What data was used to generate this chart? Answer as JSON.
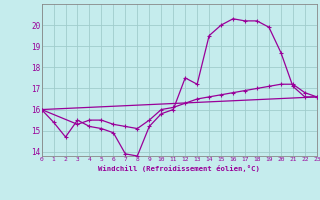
{
  "xlabel": "Windchill (Refroidissement éolien,°C)",
  "xlim": [
    0,
    23
  ],
  "ylim": [
    13.8,
    21.0
  ],
  "yticks": [
    14,
    15,
    16,
    17,
    18,
    19,
    20
  ],
  "xticks": [
    0,
    1,
    2,
    3,
    4,
    5,
    6,
    7,
    8,
    9,
    10,
    11,
    12,
    13,
    14,
    15,
    16,
    17,
    18,
    19,
    20,
    21,
    22,
    23
  ],
  "background_color": "#c5eced",
  "line_color": "#990099",
  "grid_color": "#a0cccc",
  "series1": [
    [
      0,
      16.0
    ],
    [
      1,
      15.4
    ],
    [
      2,
      14.7
    ],
    [
      3,
      15.5
    ],
    [
      4,
      15.2
    ],
    [
      5,
      15.1
    ],
    [
      6,
      14.9
    ],
    [
      7,
      13.9
    ],
    [
      8,
      13.8
    ],
    [
      9,
      15.2
    ],
    [
      10,
      15.8
    ],
    [
      11,
      16.0
    ],
    [
      12,
      17.5
    ],
    [
      13,
      17.2
    ],
    [
      14,
      19.5
    ],
    [
      15,
      20.0
    ],
    [
      16,
      20.3
    ],
    [
      17,
      20.2
    ],
    [
      18,
      20.2
    ],
    [
      19,
      19.9
    ],
    [
      20,
      18.7
    ],
    [
      21,
      17.1
    ],
    [
      22,
      16.6
    ],
    [
      23,
      16.6
    ]
  ],
  "series2": [
    [
      0,
      16.0
    ],
    [
      23,
      16.6
    ]
  ],
  "series3": [
    [
      0,
      16.0
    ],
    [
      3,
      15.3
    ],
    [
      4,
      15.5
    ],
    [
      5,
      15.5
    ],
    [
      6,
      15.3
    ],
    [
      7,
      15.2
    ],
    [
      8,
      15.1
    ],
    [
      9,
      15.5
    ],
    [
      10,
      16.0
    ],
    [
      11,
      16.1
    ],
    [
      12,
      16.3
    ],
    [
      13,
      16.5
    ],
    [
      14,
      16.6
    ],
    [
      15,
      16.7
    ],
    [
      16,
      16.8
    ],
    [
      17,
      16.9
    ],
    [
      18,
      17.0
    ],
    [
      19,
      17.1
    ],
    [
      20,
      17.2
    ],
    [
      21,
      17.2
    ],
    [
      22,
      16.8
    ],
    [
      23,
      16.6
    ]
  ]
}
